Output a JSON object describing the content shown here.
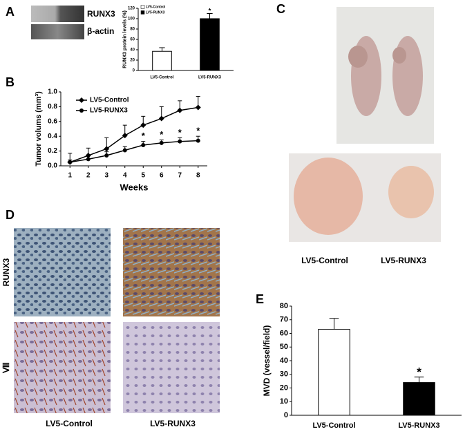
{
  "panel_labels": [
    "A",
    "B",
    "C",
    "D",
    "E"
  ],
  "blot": {
    "labels": [
      "RUNX3",
      "β-actin"
    ]
  },
  "photos": {
    "labels": [
      "LV5-Control",
      "LV5-RUNX3"
    ]
  },
  "histology": {
    "row_labels": [
      "RUNX3",
      "Ⅷ"
    ],
    "column_labels": [
      "LV5-Control",
      "LV5-RUNX3"
    ]
  },
  "chart_data": [
    {
      "type": "bar",
      "y_label": "RUNX3 protein levels (%)",
      "categories": [
        "LV5-Control",
        "LV5-RUNX3"
      ],
      "values": [
        37,
        100
      ],
      "errors": [
        7,
        10
      ],
      "colors": [
        "#ffffff",
        "#000000"
      ],
      "significance": [
        null,
        "*"
      ],
      "legend": [
        "LV5-Control",
        "LV5-RUNX3"
      ],
      "ylim": [
        0,
        120
      ],
      "yticks": [
        0,
        20,
        40,
        60,
        80,
        100,
        120
      ]
    },
    {
      "type": "line",
      "x_label": "Weeks",
      "y_label": "Tumor volums (mm³)",
      "x": [
        1,
        2,
        3,
        4,
        5,
        6,
        7,
        8
      ],
      "series": [
        {
          "name": "LV5-Control",
          "color": "#000000",
          "marker": "diamond",
          "values": [
            0.05,
            0.14,
            0.23,
            0.41,
            0.55,
            0.64,
            0.75,
            0.79
          ],
          "errors": [
            0.12,
            0.1,
            0.15,
            0.14,
            0.12,
            0.16,
            0.13,
            0.15
          ]
        },
        {
          "name": "LV5-RUNX3",
          "color": "#000000",
          "marker": "circle",
          "values": [
            0.05,
            0.09,
            0.14,
            0.21,
            0.28,
            0.31,
            0.33,
            0.34
          ],
          "errors": [
            0.03,
            0.05,
            0.05,
            0.05,
            0.05,
            0.04,
            0.05,
            0.06
          ]
        }
      ],
      "significance": [
        null,
        null,
        null,
        null,
        "*",
        "*",
        "*",
        "*"
      ],
      "xlim": [
        0.5,
        8.5
      ],
      "xticks": [
        1,
        2,
        3,
        4,
        5,
        6,
        7,
        8
      ],
      "ylim": [
        0,
        1.0
      ],
      "yticks": [
        {
          "value": 0,
          "label": "0.0"
        },
        0.2,
        0.4,
        0.6,
        0.8,
        {
          "value": 1.0,
          "label": "1.0"
        }
      ]
    },
    {
      "type": "bar",
      "y_label": "MVD (vessel/field)",
      "categories": [
        "LV5-Control",
        "LV5-RUNX3"
      ],
      "values": [
        63,
        24
      ],
      "errors": [
        8,
        4
      ],
      "colors": [
        "#ffffff",
        "#000000"
      ],
      "significance": [
        null,
        "*"
      ],
      "ylim": [
        0,
        80
      ],
      "yticks": [
        0,
        10,
        20,
        30,
        40,
        50,
        60,
        70,
        80
      ]
    }
  ]
}
